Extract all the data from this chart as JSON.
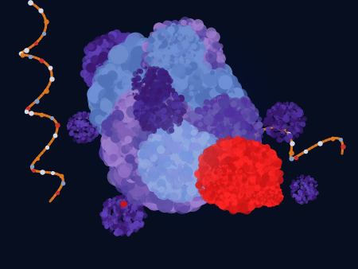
{
  "bg_dark": "#060e20",
  "bg_mid": "#0c1e40",
  "glow_blue": "#2255aa",
  "glow_cyan": "#4488cc",
  "rib_blue": "#6080c8",
  "rib_purple": "#8060b8",
  "rib_lavender": "#a080d0",
  "rib_dark_purple": "#5040a0",
  "rib_periwinkle": "#7090d8",
  "trna_purple": "#5030a0",
  "trna_mid": "#6040b8",
  "trna_dark": "#3a1870",
  "protein_red": "#cc1515",
  "protein_bright": "#ee2020",
  "mrna_orange": "#e07820",
  "mrna_white": "#d8e0f0",
  "mrna_red": "#cc3030",
  "mrna_blue": "#80a0d0",
  "fig_width": 4.5,
  "fig_height": 3.38,
  "dpi": 100
}
